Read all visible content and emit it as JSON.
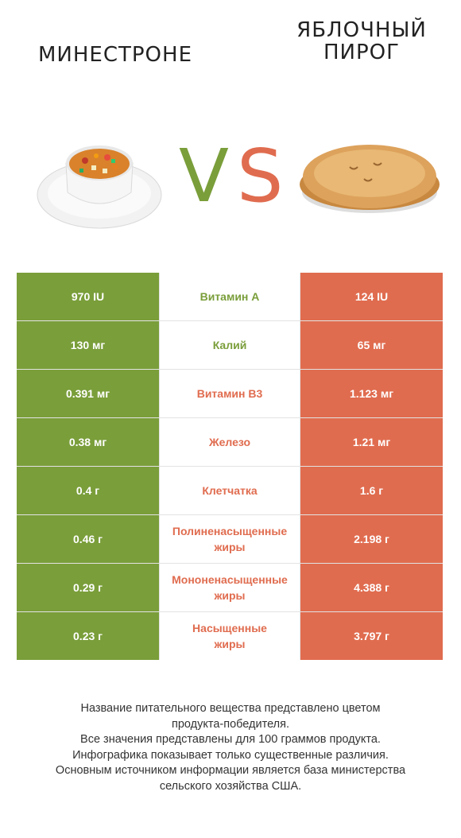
{
  "header": {
    "left_title": [
      "МИНЕСТРОНЕ"
    ],
    "right_title": [
      "ЯБЛОЧНЫЙ",
      "ПИРОГ"
    ],
    "vs_v": "V",
    "vs_s": "S"
  },
  "colors": {
    "left": "#7a9e3a",
    "right": "#e06c4f"
  },
  "images": {
    "left": "minestrone-soup-bowl",
    "right": "apple-pie"
  },
  "rows": [
    {
      "left": "970 IU",
      "nutrient": [
        "Витамин A"
      ],
      "right": "124 IU",
      "winner": "left"
    },
    {
      "left": "130 мг",
      "nutrient": [
        "Калий"
      ],
      "right": "65 мг",
      "winner": "left"
    },
    {
      "left": "0.391 мг",
      "nutrient": [
        "Витамин B3"
      ],
      "right": "1.123 мг",
      "winner": "right"
    },
    {
      "left": "0.38 мг",
      "nutrient": [
        "Железо"
      ],
      "right": "1.21 мг",
      "winner": "right"
    },
    {
      "left": "0.4 г",
      "nutrient": [
        "Клетчатка"
      ],
      "right": "1.6 г",
      "winner": "right"
    },
    {
      "left": "0.46 г",
      "nutrient": [
        "Полиненасыщенные",
        "жиры"
      ],
      "right": "2.198 г",
      "winner": "right"
    },
    {
      "left": "0.29 г",
      "nutrient": [
        "Мононенасыщенные",
        "жиры"
      ],
      "right": "4.388 г",
      "winner": "right"
    },
    {
      "left": "0.23 г",
      "nutrient": [
        "Насыщенные",
        "жиры"
      ],
      "right": "3.797 г",
      "winner": "right"
    }
  ],
  "footnote": [
    "Название питательного вещества представлено цветом",
    "продукта-победителя.",
    "Все значения представлены для 100 граммов продукта.",
    "Инфографика показывает только существенные различия.",
    "Основным источником информации является база министерства",
    "сельского хозяйства США."
  ]
}
